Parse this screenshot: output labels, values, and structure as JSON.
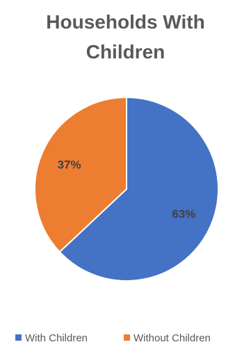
{
  "chart_data": {
    "type": "pie",
    "title_lines": [
      "Households With",
      "Children"
    ],
    "slices": [
      {
        "label": "With Children",
        "value": 63,
        "display": "63%",
        "color": "#4472C4"
      },
      {
        "label": "Without Children",
        "value": 37,
        "display": "37%",
        "color": "#ED7D31"
      }
    ],
    "legend": {
      "position": "bottom",
      "entries": [
        "With Children",
        "Without Children"
      ]
    }
  }
}
